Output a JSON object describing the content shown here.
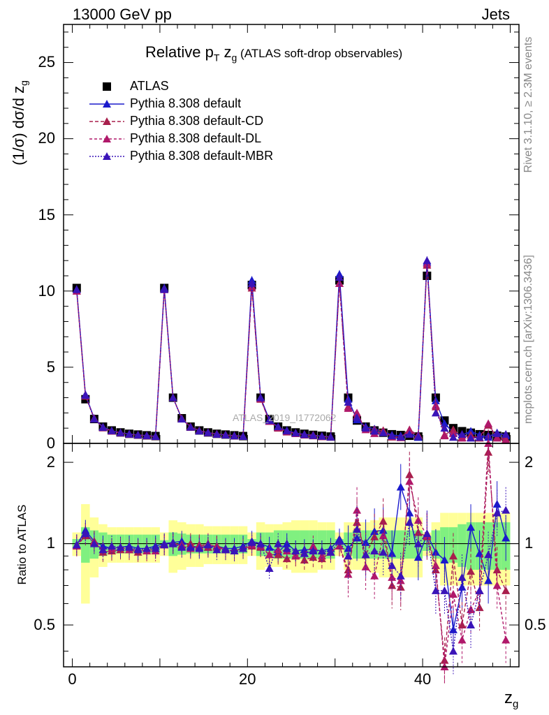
{
  "header": {
    "left": "13000 GeV pp",
    "right": "Jets"
  },
  "side_text": {
    "rivet": "Rivet 3.1.10, ≥ 2.3M events",
    "mcplots": "mcplots.cern.ch [arXiv:1306.3436]"
  },
  "watermark": "ATLAS_2019_I1772062",
  "colors": {
    "atlas": "#000000",
    "default": "#1a1acc",
    "cd": "#a81f4c",
    "dl": "#b0186a",
    "mbr": "#3a14b8",
    "band_yellow": "#ffff99",
    "band_green": "#80f080"
  },
  "chart_data": [
    {
      "type": "line",
      "title": "Relative p_T z_g (ATLAS soft-drop observables)",
      "title_parts": {
        "main": "Relative p",
        "sub1": "T",
        "mid": " z",
        "sub2": "g",
        "small": " (ATLAS soft-drop observables)"
      },
      "ylabel": "(1/σ) dσ/d z_g",
      "ylabel_parts": {
        "main": "(1/σ) dσ/d z",
        "sub": "g"
      },
      "xlim": [
        -1,
        51
      ],
      "ylim": [
        0,
        27.5
      ],
      "yticks": [
        "0",
        "5",
        "10",
        "15",
        "20",
        "25"
      ],
      "x": [
        0.5,
        1.5,
        2.5,
        3.5,
        4.5,
        5.5,
        6.5,
        7.5,
        8.5,
        9.5,
        10.5,
        11.5,
        12.5,
        13.5,
        14.5,
        15.5,
        16.5,
        17.5,
        18.5,
        19.5,
        20.5,
        21.5,
        22.5,
        23.5,
        24.5,
        25.5,
        26.5,
        27.5,
        28.5,
        29.5,
        30.5,
        31.5,
        32.5,
        33.5,
        34.5,
        35.5,
        36.5,
        37.5,
        38.5,
        39.5,
        40.5,
        41.5,
        42.5,
        43.5,
        44.5,
        45.5,
        46.5,
        47.5,
        48.5,
        49.5
      ],
      "legend": [
        "ATLAS",
        "Pythia 8.308 default",
        "Pythia 8.308 default-CD",
        "Pythia 8.308 default-DL",
        "Pythia 8.308 default-MBR"
      ],
      "series": [
        {
          "name": "ATLAS",
          "values": [
            10.2,
            2.9,
            1.6,
            1.1,
            0.85,
            0.72,
            0.63,
            0.58,
            0.53,
            0.48,
            10.2,
            3.0,
            1.65,
            1.1,
            0.85,
            0.72,
            0.63,
            0.58,
            0.53,
            0.48,
            10.4,
            3.0,
            1.6,
            1.1,
            0.85,
            0.72,
            0.63,
            0.56,
            0.5,
            0.45,
            10.7,
            3.0,
            1.5,
            1.1,
            0.85,
            0.7,
            0.6,
            0.55,
            0.5,
            0.45,
            11.0,
            3.0,
            1.5,
            1.0,
            0.8,
            0.7,
            0.6,
            0.55,
            0.5,
            0.45
          ]
        },
        {
          "name": "Pythia 8.308 default",
          "values": [
            10.1,
            3.2,
            1.65,
            1.08,
            0.82,
            0.7,
            0.62,
            0.56,
            0.51,
            0.47,
            10.2,
            3.0,
            1.62,
            1.08,
            0.82,
            0.7,
            0.62,
            0.56,
            0.51,
            0.47,
            10.7,
            3.0,
            1.55,
            1.02,
            0.85,
            0.68,
            0.6,
            0.53,
            0.47,
            0.43,
            11.1,
            2.9,
            1.55,
            1.1,
            0.95,
            0.78,
            0.55,
            0.5,
            0.65,
            0.4,
            11.9,
            2.8,
            1.3,
            0.7,
            0.55,
            0.8,
            0.55,
            0.4,
            0.7,
            0.5
          ]
        },
        {
          "name": "Pythia 8.308 default-CD",
          "values": [
            10.0,
            3.1,
            1.63,
            1.02,
            0.8,
            0.68,
            0.6,
            0.54,
            0.5,
            0.46,
            10.1,
            3.0,
            1.63,
            1.1,
            0.84,
            0.7,
            0.62,
            0.55,
            0.5,
            0.46,
            10.2,
            2.9,
            1.45,
            1.0,
            0.75,
            0.65,
            0.55,
            0.5,
            0.44,
            0.42,
            10.5,
            2.4,
            1.8,
            1.0,
            0.9,
            0.85,
            0.42,
            0.38,
            0.9,
            0.5,
            11.7,
            2.4,
            0.55,
            0.9,
            0.4,
            0.55,
            0.35,
            1.2,
            0.4,
            0.3
          ]
        },
        {
          "name": "Pythia 8.308 default-DL",
          "values": [
            10.0,
            3.15,
            1.62,
            1.05,
            0.82,
            0.7,
            0.6,
            0.55,
            0.5,
            0.45,
            10.1,
            3.0,
            1.62,
            1.06,
            0.83,
            0.72,
            0.61,
            0.56,
            0.5,
            0.46,
            10.3,
            2.95,
            1.45,
            1.05,
            0.8,
            0.65,
            0.58,
            0.55,
            0.45,
            0.42,
            10.5,
            2.3,
            2.0,
            0.9,
            0.65,
            0.75,
            0.45,
            0.4,
            0.85,
            0.55,
            11.8,
            2.5,
            0.5,
            0.65,
            0.35,
            0.4,
            0.4,
            1.3,
            0.35,
            0.2
          ]
        },
        {
          "name": "Pythia 8.308 default-MBR",
          "values": [
            10.1,
            3.15,
            1.6,
            1.05,
            0.83,
            0.7,
            0.61,
            0.55,
            0.51,
            0.46,
            10.1,
            3.0,
            1.6,
            1.07,
            0.82,
            0.71,
            0.6,
            0.55,
            0.5,
            0.46,
            10.5,
            3.0,
            1.5,
            1.1,
            0.82,
            0.68,
            0.58,
            0.52,
            0.47,
            0.42,
            10.9,
            2.7,
            1.7,
            1.0,
            0.8,
            0.7,
            0.5,
            0.42,
            0.6,
            0.45,
            12.0,
            2.0,
            1.0,
            0.4,
            0.6,
            0.35,
            0.4,
            0.5,
            0.65,
            0.6
          ]
        }
      ]
    },
    {
      "type": "line",
      "title": "",
      "xlabel": "z_g",
      "xlabel_parts": {
        "main": "z",
        "sub": "g"
      },
      "ylabel": "Ratio to ATLAS",
      "xlim": [
        -1,
        51
      ],
      "ylim": [
        0.35,
        2.35
      ],
      "yscale": "log",
      "xticks": [
        "0",
        "20",
        "40"
      ],
      "yticks": [
        "0.5",
        "1",
        "2"
      ],
      "x": [
        0.5,
        1.5,
        2.5,
        3.5,
        4.5,
        5.5,
        6.5,
        7.5,
        8.5,
        9.5,
        10.5,
        11.5,
        12.5,
        13.5,
        14.5,
        15.5,
        16.5,
        17.5,
        18.5,
        19.5,
        20.5,
        21.5,
        22.5,
        23.5,
        24.5,
        25.5,
        26.5,
        27.5,
        28.5,
        29.5,
        30.5,
        31.5,
        32.5,
        33.5,
        34.5,
        35.5,
        36.5,
        37.5,
        38.5,
        39.5,
        40.5,
        41.5,
        42.5,
        43.5,
        44.5,
        45.5,
        46.5,
        47.5,
        48.5,
        49.5
      ],
      "band_yellow": [
        0.1,
        0.4,
        0.25,
        0.18,
        0.15,
        0.15,
        0.15,
        0.15,
        0.15,
        0.15,
        0.1,
        0.22,
        0.2,
        0.18,
        0.18,
        0.16,
        0.16,
        0.16,
        0.16,
        0.16,
        0.1,
        0.2,
        0.18,
        0.18,
        0.2,
        0.22,
        0.22,
        0.22,
        0.2,
        0.2,
        0.1,
        0.2,
        0.2,
        0.2,
        0.22,
        0.25,
        0.25,
        0.25,
        0.25,
        0.25,
        0.1,
        0.2,
        0.3,
        0.3,
        0.3,
        0.3,
        0.3,
        0.3,
        0.3,
        0.3
      ],
      "band_green": [
        0.04,
        0.15,
        0.12,
        0.1,
        0.08,
        0.08,
        0.08,
        0.08,
        0.08,
        0.08,
        0.03,
        0.1,
        0.09,
        0.08,
        0.08,
        0.08,
        0.08,
        0.08,
        0.08,
        0.08,
        0.04,
        0.1,
        0.1,
        0.12,
        0.12,
        0.12,
        0.12,
        0.12,
        0.12,
        0.12,
        0.04,
        0.1,
        0.12,
        0.12,
        0.12,
        0.12,
        0.12,
        0.12,
        0.12,
        0.12,
        0.06,
        0.12,
        0.15,
        0.15,
        0.18,
        0.2,
        0.2,
        0.2,
        0.2,
        0.2
      ],
      "series": [
        {
          "name": "Pythia 8.308 default",
          "values": [
            0.99,
            1.12,
            1.02,
            0.98,
            0.96,
            0.97,
            0.98,
            0.96,
            0.96,
            0.98,
            1.0,
            1.01,
            1.02,
            0.98,
            0.97,
            0.97,
            0.98,
            0.96,
            0.96,
            0.98,
            1.02,
            1.0,
            0.97,
            0.93,
            1.0,
            0.94,
            0.95,
            0.95,
            0.94,
            0.96,
            1.04,
            0.96,
            1.05,
            1.01,
            1.11,
            1.12,
            0.92,
            1.62,
            1.3,
            0.89,
            1.08,
            0.93,
            0.87,
            0.48,
            0.69,
            1.15,
            0.92,
            0.73,
            1.4,
            1.05
          ]
        },
        {
          "name": "Pythia 8.308 default-CD",
          "values": [
            0.98,
            1.07,
            1.02,
            0.93,
            0.94,
            0.95,
            0.95,
            0.93,
            0.94,
            0.96,
            0.99,
            1.0,
            0.99,
            1.0,
            0.99,
            0.97,
            0.98,
            0.95,
            0.94,
            0.96,
            0.98,
            0.97,
            0.91,
            0.91,
            0.88,
            0.9,
            0.87,
            0.89,
            0.88,
            0.93,
            0.98,
            0.8,
            1.2,
            0.91,
            1.06,
            1.21,
            0.7,
            0.69,
            1.8,
            1.1,
            1.06,
            0.8,
            0.37,
            0.9,
            0.5,
            0.79,
            0.58,
            2.18,
            0.8,
            0.67
          ]
        },
        {
          "name": "Pythia 8.308 default-DL",
          "values": [
            0.98,
            1.09,
            1.01,
            0.95,
            0.96,
            0.97,
            0.95,
            0.95,
            0.94,
            0.94,
            0.99,
            1.0,
            0.98,
            0.96,
            0.98,
            1.0,
            0.97,
            0.95,
            0.94,
            0.96,
            0.99,
            0.98,
            0.91,
            0.95,
            0.94,
            0.9,
            0.92,
            0.98,
            0.9,
            0.93,
            0.98,
            0.77,
            1.33,
            0.82,
            0.76,
            1.07,
            0.75,
            0.73,
            1.7,
            1.22,
            1.07,
            0.83,
            0.33,
            0.65,
            0.44,
            0.57,
            0.67,
            2.36,
            0.7,
            0.44
          ]
        },
        {
          "name": "Pythia 8.308 default-MBR",
          "values": [
            0.99,
            1.09,
            1.0,
            0.95,
            0.98,
            0.97,
            0.97,
            0.95,
            0.96,
            0.96,
            0.99,
            1.0,
            0.97,
            0.97,
            0.96,
            0.99,
            0.95,
            0.95,
            0.94,
            0.96,
            1.01,
            1.0,
            0.81,
            1.0,
            0.96,
            0.94,
            0.92,
            0.94,
            0.94,
            0.93,
            1.02,
            0.9,
            1.13,
            0.91,
            0.94,
            0.93,
            0.83,
            0.76,
            1.2,
            1.0,
            1.09,
            0.67,
            0.67,
            0.4,
            0.75,
            0.5,
            0.67,
            0.91,
            1.3,
            1.33
          ]
        }
      ]
    }
  ]
}
